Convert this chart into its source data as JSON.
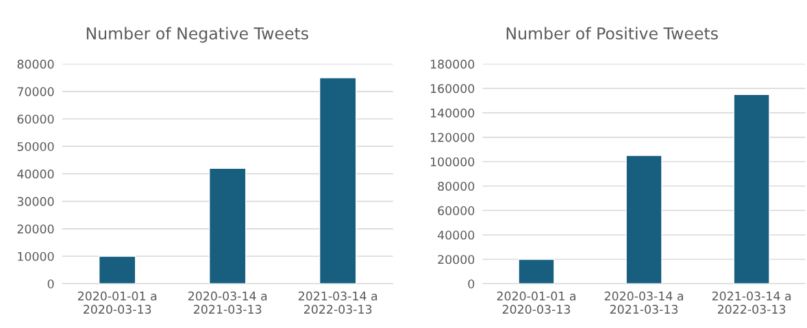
{
  "chart_data": [
    {
      "type": "bar",
      "title": "Number of Negative Tweets",
      "categories": [
        "2020-01-01 a\n2020-03-13",
        "2020-03-14 a\n2021-03-13",
        "2021-03-14 a\n2022-03-13"
      ],
      "values": [
        10000,
        42000,
        75000
      ],
      "color": "#175e7f",
      "ylim": [
        0,
        80000
      ],
      "yticks": [
        0,
        10000,
        20000,
        30000,
        40000,
        50000,
        60000,
        70000,
        80000
      ],
      "grid": "y"
    },
    {
      "type": "bar",
      "title": "Number of Positive Tweets",
      "categories": [
        "2020-01-01 a\n2020-03-13",
        "2020-03-14 a\n2021-03-13",
        "2021-03-14 a\n2022-03-13"
      ],
      "values": [
        20000,
        105000,
        155000
      ],
      "color": "#175e7f",
      "ylim": [
        0,
        180000
      ],
      "yticks": [
        0,
        20000,
        40000,
        60000,
        80000,
        100000,
        120000,
        140000,
        160000,
        180000
      ],
      "grid": "y"
    }
  ]
}
